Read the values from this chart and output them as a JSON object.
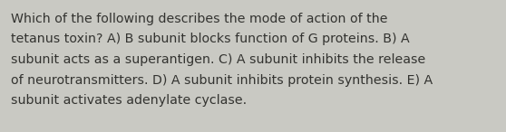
{
  "background_color": "#c9c9c3",
  "text_lines": [
    "Which of the following describes the mode of action of the",
    "tetanus toxin? A) B subunit blocks function of G proteins. B) A",
    "subunit acts as a superantigen. C) A subunit inhibits the release",
    "of neurotransmitters. D) A subunit inhibits protein synthesis. E) A",
    "subunit activates adenylate cyclase."
  ],
  "text_color": "#333330",
  "font_size": 10.2,
  "font_family": "DejaVu Sans"
}
